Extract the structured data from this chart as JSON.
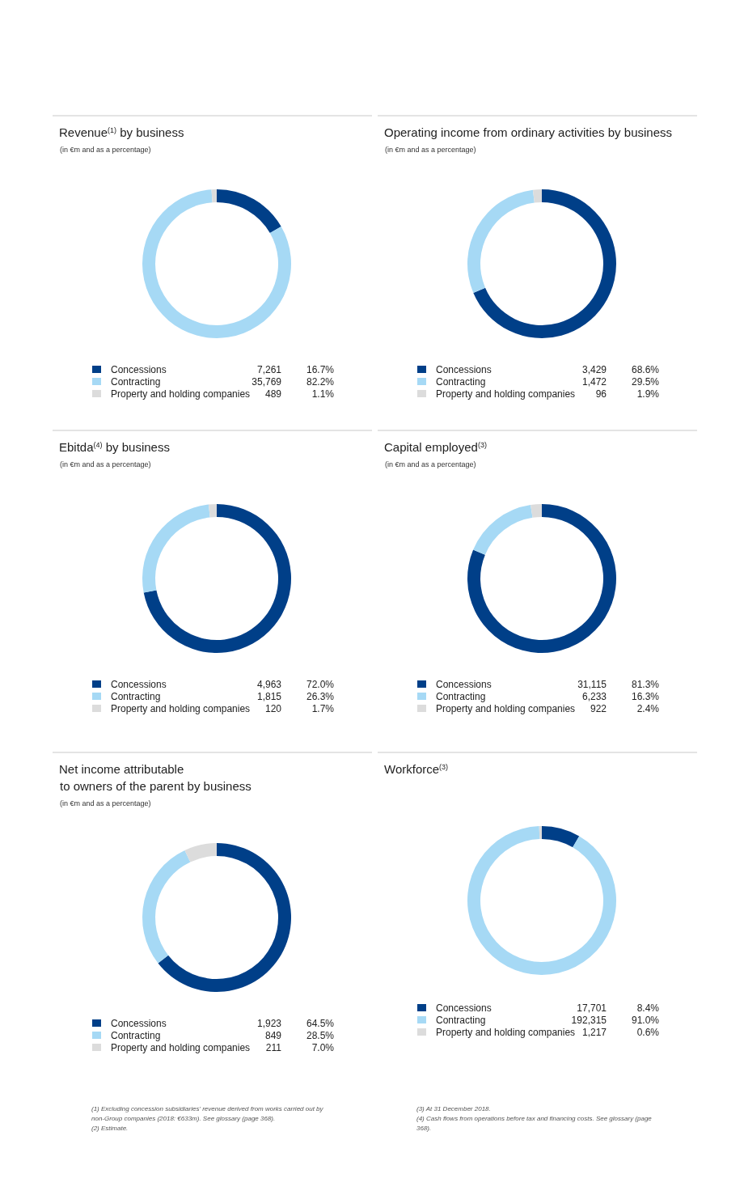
{
  "chart_data": [
    {
      "type": "donut",
      "title": "Revenue$^{(1)}$ by business",
      "subtitle": "(in €m and as a percentage)",
      "categories": [
        "Concessions",
        "Contracting",
        "Property and holding companies"
      ],
      "values": [
        7261,
        35769,
        489
      ],
      "value_labels": [
        "7,261",
        "35,769",
        "489"
      ],
      "colors": [
        "#003f88",
        "#a6d9f5",
        "#dcdcdc"
      ],
      "legend": "bottom",
      "annotations": [
        {
          "text": "16.7%",
          "x": "Concessions"
        },
        {
          "text": "82.2%",
          "x": "Contracting"
        },
        {
          "text": "1.1%",
          "x": "Property and holding companies"
        }
      ]
    },
    {
      "type": "donut",
      "title": "Operating income from ordinary activities by business",
      "subtitle": "(in €m and as a percentage)",
      "categories": [
        "Concessions",
        "Contracting",
        "Property and holding companies"
      ],
      "values": [
        3429,
        1472,
        96
      ],
      "value_labels": [
        "3,429",
        "1,472",
        "96"
      ],
      "colors": [
        "#003f88",
        "#a6d9f5",
        "#dcdcdc"
      ],
      "legend": "bottom",
      "annotations": [
        {
          "text": "68.6%",
          "x": "Concessions"
        },
        {
          "text": "29.5%",
          "x": "Contracting"
        },
        {
          "text": "1.9%",
          "x": "Property and holding companies"
        }
      ]
    },
    {
      "type": "donut",
      "title": "Ebitda$^{(4)}$ by business",
      "subtitle": "(in €m and as a percentage)",
      "categories": [
        "Concessions",
        "Contracting",
        "Property and holding companies"
      ],
      "values": [
        4963,
        1815,
        120
      ],
      "value_labels": [
        "4,963",
        "1,815",
        "120"
      ],
      "colors": [
        "#003f88",
        "#a6d9f5",
        "#dcdcdc"
      ],
      "legend": "bottom",
      "annotations": [
        {
          "text": "72.0%",
          "x": "Concessions"
        },
        {
          "text": "26.3%",
          "x": "Contracting"
        },
        {
          "text": "1.7%",
          "x": "Property and holding companies"
        }
      ]
    },
    {
      "type": "donut",
      "title": "Capital employed$^{(3)}$",
      "subtitle": "(in €m and as a percentage)",
      "categories": [
        "Concessions",
        "Contracting",
        "Property and holding companies"
      ],
      "values": [
        31115,
        6233,
        922
      ],
      "value_labels": [
        "31,115",
        "6,233",
        "922"
      ],
      "colors": [
        "#003f88",
        "#a6d9f5",
        "#dcdcdc"
      ],
      "legend": "bottom",
      "annotations": [
        {
          "text": "81.3%",
          "x": "Concessions"
        },
        {
          "text": "16.3%",
          "x": "Contracting"
        },
        {
          "text": "2.4%",
          "x": "Property and holding companies"
        }
      ]
    },
    {
      "type": "donut",
      "title": "Net income attributable\nto owners of the parent by business",
      "subtitle": "(in €m and as a percentage)",
      "categories": [
        "Concessions",
        "Contracting",
        "Property and holding companies"
      ],
      "values": [
        1923,
        849,
        211
      ],
      "value_labels": [
        "1,923",
        "849",
        "211"
      ],
      "colors": [
        "#003f88",
        "#a6d9f5",
        "#dcdcdc"
      ],
      "legend": "bottom",
      "annotations": [
        {
          "text": "64.5%",
          "x": "Concessions"
        },
        {
          "text": "28.5%",
          "x": "Contracting"
        },
        {
          "text": "7.0%",
          "x": "Property and holding companies"
        },
        "(1) Excluding concession subsidiaries' revenue derived from works carried out by non-Group companies (2018: €633m). See glossary (page 368).",
        "(2) Estimate."
      ]
    },
    {
      "type": "donut",
      "title": "Workforce$^{(3)}$",
      "categories": [
        "Concessions",
        "Contracting",
        "Property and holding companies"
      ],
      "values": [
        17701,
        192315,
        1217
      ],
      "value_labels": [
        "17,701",
        "192,315",
        "1,217"
      ],
      "colors": [
        "#003f88",
        "#a6d9f5",
        "#dcdcdc"
      ],
      "legend": "bottom",
      "annotations": [
        {
          "text": "8.4%",
          "x": "Concessions"
        },
        {
          "text": "91.0%",
          "x": "Contracting"
        },
        {
          "text": "0.6%",
          "x": "Property and holding companies"
        },
        "(3) At 31 December 2018.",
        "(4) Cash flows from operations before tax and financing costs. See glossary (page 368)."
      ]
    }
  ]
}
